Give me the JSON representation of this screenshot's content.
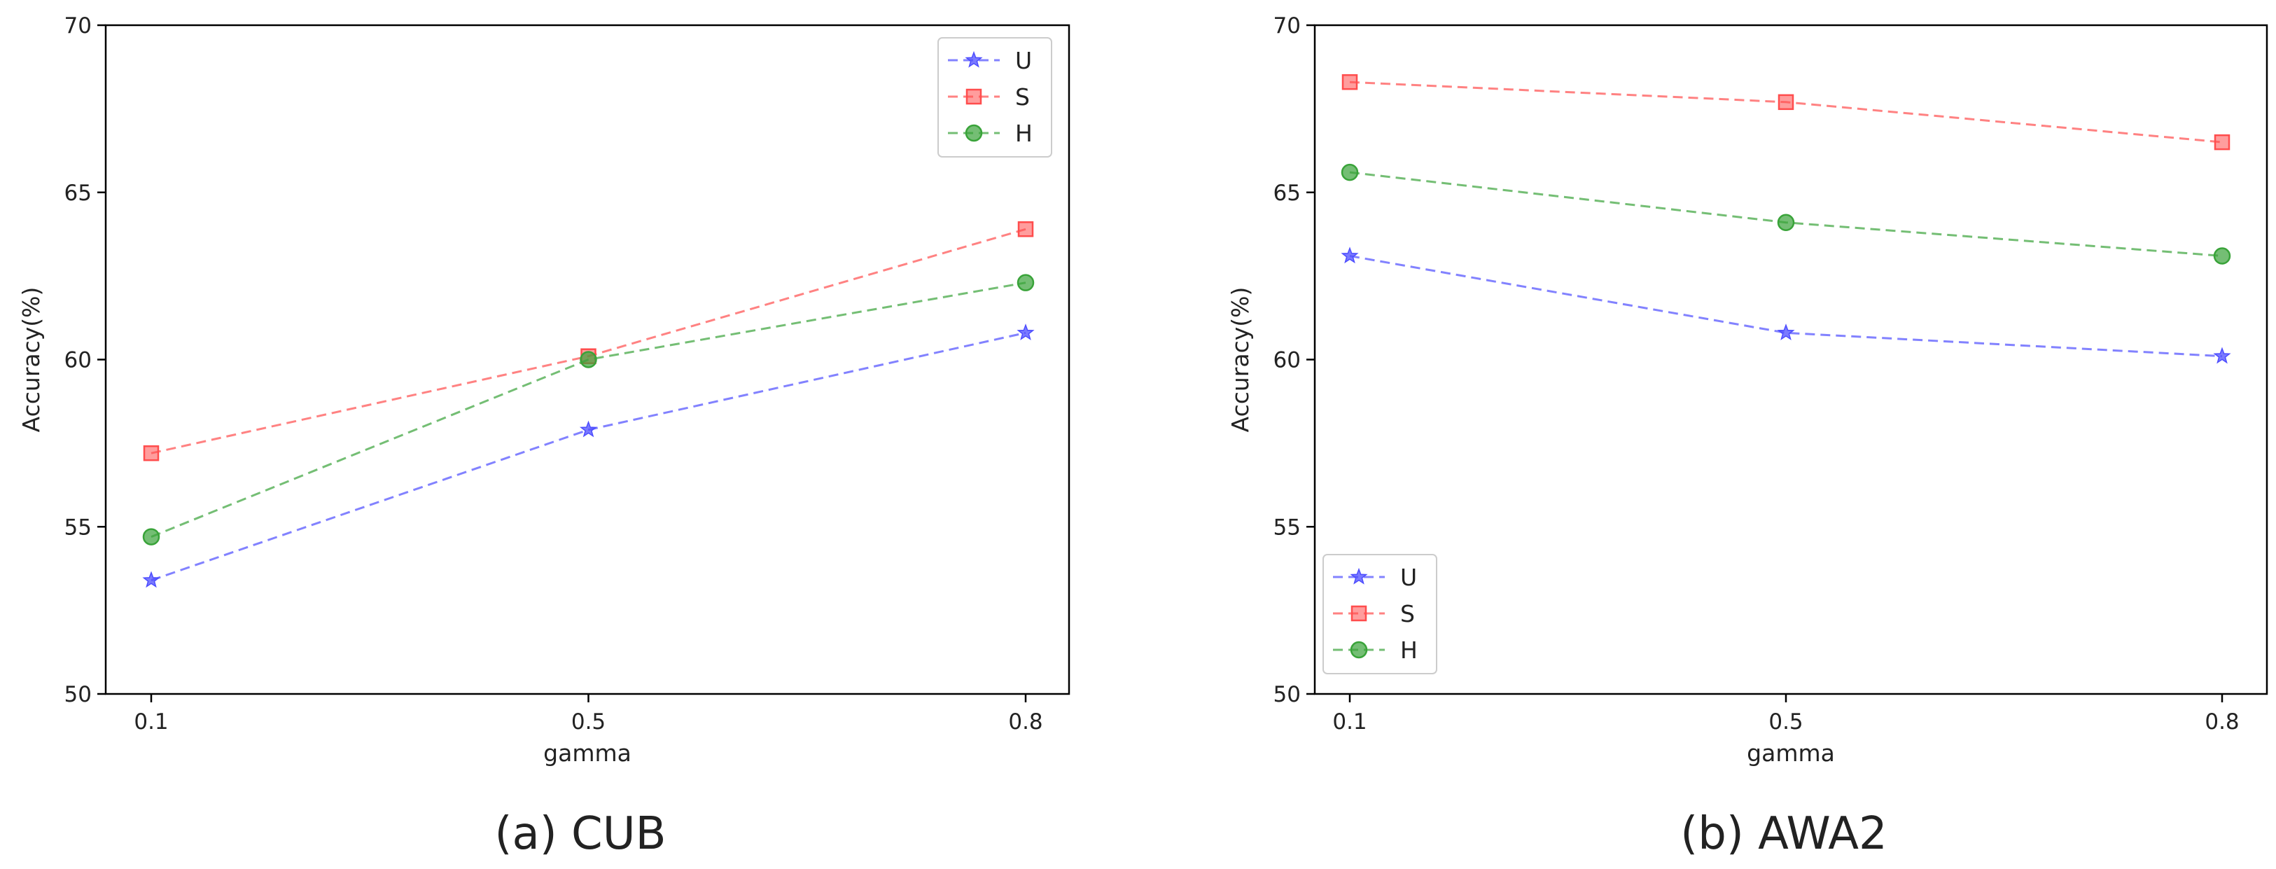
{
  "figure": {
    "panels": [
      {
        "caption": "(a)  CUB"
      },
      {
        "caption": "(b)  AWA2"
      }
    ]
  },
  "colors": {
    "U": "#4d4dff",
    "S": "#ff4d4d",
    "H": "#39a339",
    "axis": "#000000",
    "text": "#222222"
  },
  "chart_data": [
    {
      "type": "line",
      "title": "",
      "caption": "(a)  CUB",
      "xlabel": "gamma",
      "ylabel": "Accuracy(%)",
      "x": [
        0.1,
        0.5,
        0.8
      ],
      "x_tick_labels": [
        "0.1",
        "0.5",
        "0.8"
      ],
      "ylim": [
        50,
        70
      ],
      "y_ticks": [
        50,
        55,
        60,
        65,
        70
      ],
      "legend_position": "top-right",
      "grid": false,
      "series": [
        {
          "name": "U",
          "marker": "star",
          "values": [
            53.4,
            57.9,
            60.8
          ]
        },
        {
          "name": "S",
          "marker": "square",
          "values": [
            57.2,
            60.1,
            63.9
          ]
        },
        {
          "name": "H",
          "marker": "circle",
          "values": [
            54.7,
            60.0,
            62.3
          ]
        }
      ]
    },
    {
      "type": "line",
      "title": "",
      "caption": "(b)  AWA2",
      "xlabel": "gamma",
      "ylabel": "Accuracy(%)",
      "x": [
        0.1,
        0.5,
        0.8
      ],
      "x_tick_labels": [
        "0.1",
        "0.5",
        "0.8"
      ],
      "ylim": [
        50,
        70
      ],
      "y_ticks": [
        50,
        55,
        60,
        65,
        70
      ],
      "legend_position": "bottom-left",
      "grid": false,
      "series": [
        {
          "name": "U",
          "marker": "star",
          "values": [
            63.1,
            60.8,
            60.1
          ]
        },
        {
          "name": "S",
          "marker": "square",
          "values": [
            68.3,
            67.7,
            66.5
          ]
        },
        {
          "name": "H",
          "marker": "circle",
          "values": [
            65.6,
            64.1,
            63.1
          ]
        }
      ]
    }
  ]
}
